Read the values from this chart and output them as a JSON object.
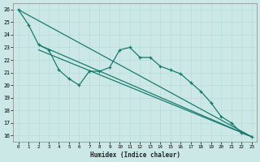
{
  "xlabel": "Humidex (Indice chaleur)",
  "ylabel": "",
  "background_color": "#cce8e6",
  "grid_color": "#aad4d0",
  "line_color": "#1a7a6e",
  "xlim": [
    -0.5,
    23.5
  ],
  "ylim": [
    15.5,
    26.5
  ],
  "x_ticks": [
    0,
    1,
    2,
    3,
    4,
    5,
    6,
    7,
    8,
    9,
    10,
    11,
    12,
    13,
    14,
    15,
    16,
    17,
    18,
    19,
    20,
    21,
    22,
    23
  ],
  "y_ticks": [
    16,
    17,
    18,
    19,
    20,
    21,
    22,
    23,
    24,
    25,
    26
  ],
  "series": {
    "line1": {
      "x": [
        0,
        1,
        2,
        3,
        4,
        5,
        6,
        7,
        8,
        9,
        10,
        11,
        12,
        13,
        14,
        15,
        16,
        17,
        18,
        19,
        20,
        21,
        22,
        23
      ],
      "y": [
        26.0,
        24.8,
        23.2,
        22.8,
        21.2,
        20.5,
        20.0,
        21.1,
        21.1,
        21.4,
        22.8,
        23.0,
        22.2,
        22.2,
        21.5,
        21.2,
        20.9,
        20.2,
        19.5,
        18.6,
        17.5,
        17.0,
        16.2,
        15.9
      ]
    },
    "line2": {
      "x": [
        0,
        23
      ],
      "y": [
        26.0,
        15.9
      ]
    },
    "line3": {
      "x": [
        2,
        23
      ],
      "y": [
        23.2,
        15.9
      ]
    },
    "line4": {
      "x": [
        2,
        23
      ],
      "y": [
        22.8,
        15.9
      ]
    }
  }
}
